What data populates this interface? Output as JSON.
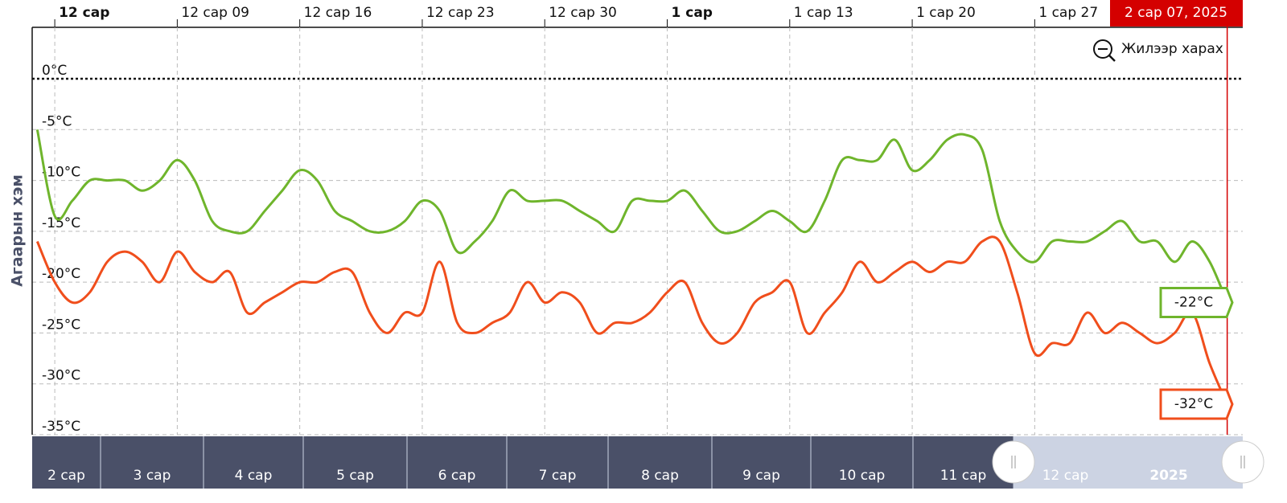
{
  "chart_data": {
    "type": "line",
    "yaxis_title": "Агаарын хэм",
    "button": "Жилээр харах",
    "crosshair_label": "2 сар 07, 2025",
    "x": [
      "2024-12-01",
      "2024-12-02",
      "2024-12-03",
      "2024-12-04",
      "2024-12-05",
      "2024-12-06",
      "2024-12-07",
      "2024-12-08",
      "2024-12-09",
      "2024-12-10",
      "2024-12-11",
      "2024-12-12",
      "2024-12-13",
      "2024-12-14",
      "2024-12-15",
      "2024-12-16",
      "2024-12-17",
      "2024-12-18",
      "2024-12-19",
      "2024-12-20",
      "2024-12-21",
      "2024-12-22",
      "2024-12-23",
      "2024-12-24",
      "2024-12-25",
      "2024-12-26",
      "2024-12-27",
      "2024-12-28",
      "2024-12-29",
      "2024-12-30",
      "2024-12-31",
      "2025-01-01",
      "2025-01-02",
      "2025-01-03",
      "2025-01-04",
      "2025-01-05",
      "2025-01-06",
      "2025-01-07",
      "2025-01-08",
      "2025-01-09",
      "2025-01-10",
      "2025-01-11",
      "2025-01-12",
      "2025-01-13",
      "2025-01-14",
      "2025-01-15",
      "2025-01-16",
      "2025-01-17",
      "2025-01-18",
      "2025-01-19",
      "2025-01-20",
      "2025-01-21",
      "2025-01-22",
      "2025-01-23",
      "2025-01-24",
      "2025-01-25",
      "2025-01-26",
      "2025-01-27",
      "2025-01-28",
      "2025-01-29",
      "2025-01-30",
      "2025-01-31",
      "2025-02-01",
      "2025-02-02",
      "2025-02-03",
      "2025-02-04",
      "2025-02-05",
      "2025-02-06",
      "2025-02-07"
    ],
    "series": [
      {
        "color": "#6fb52c",
        "values": [
          -5,
          -13.5,
          -12,
          -10,
          -10,
          -10,
          -11,
          -10,
          -8,
          -10,
          -14,
          -15,
          -15,
          -13,
          -11,
          -9,
          -10,
          -13,
          -14,
          -15,
          -15,
          -14,
          -12,
          -13,
          -17,
          -16,
          -14,
          -11,
          -12,
          -12,
          -12,
          -13,
          -14,
          -15,
          -12,
          -12,
          -12,
          -11,
          -13,
          -15,
          -15,
          -14,
          -13,
          -14,
          -15,
          -12,
          -8,
          -8,
          -8,
          -6,
          -9,
          -8,
          -6,
          -5.5,
          -7,
          -14,
          -17,
          -18,
          -16,
          -16,
          -16,
          -15,
          -14,
          -16,
          -16,
          -18,
          -16,
          -18,
          -22
        ],
        "end_label": "-22°C"
      },
      {
        "color": "#f04e1c",
        "values": [
          -16,
          -20,
          -22,
          -21,
          -18,
          -17,
          -18,
          -20,
          -17,
          -19,
          -20,
          -19,
          -23,
          -22,
          -21,
          -20,
          -20,
          -19,
          -19,
          -23,
          -25,
          -23,
          -23,
          -18,
          -24,
          -25,
          -24,
          -23,
          -20,
          -22,
          -21,
          -22,
          -25,
          -24,
          -24,
          -23,
          -21,
          -20,
          -24,
          -26,
          -25,
          -22,
          -21,
          -20,
          -25,
          -23,
          -21,
          -18,
          -20,
          -19,
          -18,
          -19,
          -18,
          -18,
          -16,
          -16,
          -21,
          -27,
          -26,
          -26,
          -23,
          -25,
          -24,
          -25,
          -26,
          -25,
          -23,
          -28,
          -32
        ],
        "end_label": "-32°C"
      }
    ],
    "xlim": [
      "2024-11-30T17:00:00Z",
      "2025-02-07T07:00:00Z"
    ],
    "xticks": [
      {
        "value": "2024-12-02",
        "label": "12 сар",
        "bold": true
      },
      {
        "value": "2024-12-09",
        "label": "12 сар 09"
      },
      {
        "value": "2024-12-16",
        "label": "12 сар 16"
      },
      {
        "value": "2024-12-23",
        "label": "12 сар 23"
      },
      {
        "value": "2024-12-30",
        "label": "12 сар 30"
      },
      {
        "value": "2025-01-06",
        "label": "1 сар",
        "bold": true
      },
      {
        "value": "2025-01-13",
        "label": "1 сар 13"
      },
      {
        "value": "2025-01-20",
        "label": "1 сар 20"
      },
      {
        "value": "2025-01-27",
        "label": "1 сар 27"
      }
    ],
    "ylim": [
      -35,
      0
    ],
    "yticks": [
      {
        "value": 0,
        "label": "0°C"
      },
      {
        "value": -5,
        "label": "-5°C"
      },
      {
        "value": -10,
        "label": "-10°C"
      },
      {
        "value": -15,
        "label": "-15°C"
      },
      {
        "value": -20,
        "label": "-20°C"
      },
      {
        "value": -25,
        "label": "-25°C"
      },
      {
        "value": -30,
        "label": "-30°C"
      },
      {
        "value": -35,
        "label": "-35°C"
      }
    ],
    "grid": true,
    "navigator": {
      "labels": [
        "2 сар",
        "3 сар",
        "4 сар",
        "5 сар",
        "6 сар",
        "7 сар",
        "8 сар",
        "9 сар",
        "10 сар",
        "11 сар",
        "12 сар",
        "2025"
      ]
    }
  }
}
